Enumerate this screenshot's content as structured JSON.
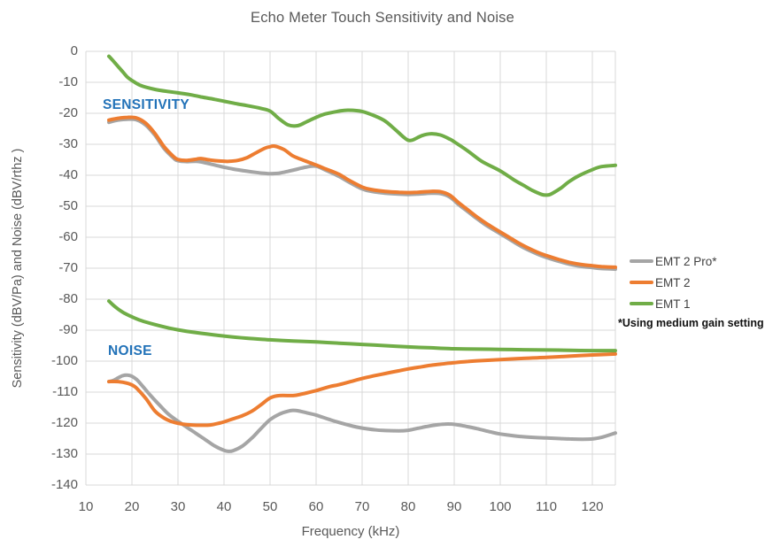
{
  "title": "Echo Meter Touch Sensitivity and Noise",
  "annotations": {
    "sensitivity": "SENSITIVITY",
    "noise": "NOISE",
    "footnote": "*Using medium gain setting"
  },
  "legend": [
    {
      "label": "EMT 2 Pro*",
      "color": "#A5A5A5"
    },
    {
      "label": "EMT 2",
      "color": "#ED7D31"
    },
    {
      "label": "EMT 1",
      "color": "#70AD47"
    }
  ],
  "colors": {
    "grid": "#D9D9D9",
    "axis_text": "#595959",
    "annotation_blue": "#2272B8",
    "background": "#FFFFFF"
  },
  "chart_data": {
    "type": "line",
    "title": "Echo Meter Touch Sensitivity and Noise",
    "xlabel": "Frequency (kHz)",
    "ylabel": "Sensitivity (dBV/Pa) and Noise (dBV/rthz )",
    "xlim": [
      10,
      125
    ],
    "ylim": [
      -140,
      0
    ],
    "x_ticks": [
      10,
      20,
      30,
      40,
      50,
      60,
      70,
      80,
      90,
      100,
      110,
      120
    ],
    "y_ticks": [
      0,
      -10,
      -20,
      -30,
      -40,
      -50,
      -60,
      -70,
      -80,
      -90,
      -100,
      -110,
      -120,
      -130,
      -140
    ],
    "grid": true,
    "legend_position": "right",
    "line_width": 4,
    "series": [
      {
        "name": "EMT 2 Pro* Sensitivity",
        "legend": "EMT 2 Pro*",
        "color": "#A5A5A5",
        "points": [
          [
            15,
            -22.9
          ],
          [
            17,
            -22.2
          ],
          [
            19,
            -21.9
          ],
          [
            21,
            -22.1
          ],
          [
            23,
            -23.8
          ],
          [
            25,
            -27.1
          ],
          [
            27,
            -31.4
          ],
          [
            29,
            -34.4
          ],
          [
            30,
            -35.3
          ],
          [
            32,
            -35.6
          ],
          [
            34,
            -35.5
          ],
          [
            36,
            -36.0
          ],
          [
            38,
            -36.7
          ],
          [
            40,
            -37.4
          ],
          [
            42,
            -38.0
          ],
          [
            45,
            -38.7
          ],
          [
            47,
            -39.1
          ],
          [
            49,
            -39.4
          ],
          [
            50,
            -39.5
          ],
          [
            52,
            -39.3
          ],
          [
            54,
            -38.7
          ],
          [
            56,
            -38.0
          ],
          [
            58,
            -37.3
          ],
          [
            60,
            -37.1
          ],
          [
            62,
            -38.3
          ],
          [
            65,
            -40.4
          ],
          [
            67,
            -42.1
          ],
          [
            70,
            -44.4
          ],
          [
            72,
            -45.2
          ],
          [
            75,
            -45.8
          ],
          [
            78,
            -46.1
          ],
          [
            80,
            -46.2
          ],
          [
            82,
            -46.1
          ],
          [
            85,
            -45.8
          ],
          [
            87,
            -45.9
          ],
          [
            89,
            -47.0
          ],
          [
            91,
            -49.5
          ],
          [
            93,
            -51.8
          ],
          [
            95,
            -54.1
          ],
          [
            97,
            -56.2
          ],
          [
            100,
            -58.9
          ],
          [
            103,
            -61.6
          ],
          [
            105,
            -63.3
          ],
          [
            108,
            -65.4
          ],
          [
            110,
            -66.5
          ],
          [
            113,
            -67.9
          ],
          [
            115,
            -68.7
          ],
          [
            118,
            -69.5
          ],
          [
            120,
            -69.8
          ],
          [
            122,
            -70.1
          ],
          [
            125,
            -70.3
          ]
        ]
      },
      {
        "name": "EMT 2 Pro* Noise",
        "legend": "EMT 2 Pro*",
        "color": "#A5A5A5",
        "points": [
          [
            15,
            -106.6
          ],
          [
            16,
            -106.2
          ],
          [
            17,
            -105.4
          ],
          [
            18,
            -104.7
          ],
          [
            19,
            -104.5
          ],
          [
            20,
            -104.9
          ],
          [
            21,
            -105.9
          ],
          [
            22,
            -107.5
          ],
          [
            24,
            -111.0
          ],
          [
            26,
            -114.2
          ],
          [
            28,
            -117.2
          ],
          [
            30,
            -119.4
          ],
          [
            32,
            -121.4
          ],
          [
            34,
            -123.4
          ],
          [
            36,
            -125.4
          ],
          [
            38,
            -127.4
          ],
          [
            40,
            -128.8
          ],
          [
            41,
            -129.1
          ],
          [
            42,
            -128.9
          ],
          [
            44,
            -127.4
          ],
          [
            46,
            -124.9
          ],
          [
            48,
            -121.8
          ],
          [
            50,
            -118.9
          ],
          [
            52,
            -117.1
          ],
          [
            54,
            -116.1
          ],
          [
            55,
            -115.9
          ],
          [
            56,
            -116.0
          ],
          [
            58,
            -116.7
          ],
          [
            60,
            -117.4
          ],
          [
            63,
            -118.9
          ],
          [
            65,
            -119.8
          ],
          [
            68,
            -121.0
          ],
          [
            70,
            -121.6
          ],
          [
            73,
            -122.2
          ],
          [
            75,
            -122.4
          ],
          [
            78,
            -122.5
          ],
          [
            80,
            -122.3
          ],
          [
            82,
            -121.7
          ],
          [
            84,
            -121.1
          ],
          [
            86,
            -120.6
          ],
          [
            88,
            -120.3
          ],
          [
            90,
            -120.4
          ],
          [
            92,
            -120.9
          ],
          [
            95,
            -121.8
          ],
          [
            98,
            -122.9
          ],
          [
            100,
            -123.5
          ],
          [
            103,
            -124.1
          ],
          [
            105,
            -124.4
          ],
          [
            108,
            -124.7
          ],
          [
            110,
            -124.8
          ],
          [
            113,
            -125.0
          ],
          [
            115,
            -125.1
          ],
          [
            118,
            -125.2
          ],
          [
            120,
            -125.1
          ],
          [
            122,
            -124.6
          ],
          [
            125,
            -123.2
          ]
        ]
      },
      {
        "name": "EMT 2 Sensitivity",
        "legend": "EMT 2",
        "color": "#ED7D31",
        "points": [
          [
            15,
            -22.2
          ],
          [
            17,
            -21.6
          ],
          [
            19,
            -21.3
          ],
          [
            21,
            -21.5
          ],
          [
            23,
            -23.2
          ],
          [
            25,
            -26.5
          ],
          [
            27,
            -30.8
          ],
          [
            29,
            -33.9
          ],
          [
            30,
            -34.9
          ],
          [
            32,
            -35.2
          ],
          [
            34,
            -34.8
          ],
          [
            35,
            -34.6
          ],
          [
            37,
            -35.1
          ],
          [
            39,
            -35.4
          ],
          [
            41,
            -35.5
          ],
          [
            43,
            -35.2
          ],
          [
            45,
            -34.3
          ],
          [
            47,
            -32.7
          ],
          [
            49,
            -31.2
          ],
          [
            50,
            -30.8
          ],
          [
            51,
            -30.6
          ],
          [
            53,
            -31.7
          ],
          [
            55,
            -33.8
          ],
          [
            57,
            -35.0
          ],
          [
            60,
            -36.7
          ],
          [
            62,
            -37.9
          ],
          [
            65,
            -39.7
          ],
          [
            67,
            -41.5
          ],
          [
            70,
            -43.8
          ],
          [
            72,
            -44.6
          ],
          [
            75,
            -45.2
          ],
          [
            78,
            -45.5
          ],
          [
            80,
            -45.6
          ],
          [
            82,
            -45.5
          ],
          [
            85,
            -45.2
          ],
          [
            87,
            -45.3
          ],
          [
            89,
            -46.4
          ],
          [
            91,
            -48.9
          ],
          [
            93,
            -51.2
          ],
          [
            95,
            -53.5
          ],
          [
            97,
            -55.6
          ],
          [
            100,
            -58.3
          ],
          [
            103,
            -61.0
          ],
          [
            105,
            -62.7
          ],
          [
            108,
            -64.8
          ],
          [
            110,
            -65.9
          ],
          [
            113,
            -67.3
          ],
          [
            115,
            -68.1
          ],
          [
            118,
            -68.9
          ],
          [
            120,
            -69.2
          ],
          [
            122,
            -69.5
          ],
          [
            125,
            -69.7
          ]
        ]
      },
      {
        "name": "EMT 2 Noise",
        "legend": "EMT 2",
        "color": "#ED7D31",
        "points": [
          [
            15,
            -106.6
          ],
          [
            17,
            -106.6
          ],
          [
            19,
            -107.1
          ],
          [
            20,
            -107.7
          ],
          [
            21,
            -108.7
          ],
          [
            23,
            -112.0
          ],
          [
            25,
            -116.1
          ],
          [
            27,
            -118.4
          ],
          [
            29,
            -119.7
          ],
          [
            31,
            -120.3
          ],
          [
            33,
            -120.6
          ],
          [
            35,
            -120.7
          ],
          [
            37,
            -120.6
          ],
          [
            39,
            -120.0
          ],
          [
            40,
            -119.6
          ],
          [
            42,
            -118.6
          ],
          [
            44,
            -117.6
          ],
          [
            46,
            -116.2
          ],
          [
            48,
            -114.1
          ],
          [
            50,
            -111.9
          ],
          [
            52,
            -111.1
          ],
          [
            55,
            -111.1
          ],
          [
            57,
            -110.6
          ],
          [
            60,
            -109.5
          ],
          [
            63,
            -108.2
          ],
          [
            65,
            -107.6
          ],
          [
            68,
            -106.4
          ],
          [
            70,
            -105.6
          ],
          [
            73,
            -104.6
          ],
          [
            75,
            -104.0
          ],
          [
            78,
            -103.1
          ],
          [
            80,
            -102.5
          ],
          [
            83,
            -101.8
          ],
          [
            85,
            -101.3
          ],
          [
            88,
            -100.8
          ],
          [
            90,
            -100.5
          ],
          [
            93,
            -100.1
          ],
          [
            95,
            -99.9
          ],
          [
            100,
            -99.5
          ],
          [
            105,
            -99.1
          ],
          [
            110,
            -98.8
          ],
          [
            115,
            -98.4
          ],
          [
            120,
            -98.0
          ],
          [
            125,
            -97.7
          ]
        ]
      },
      {
        "name": "EMT 1 Sensitivity",
        "legend": "EMT 1",
        "color": "#70AD47",
        "points": [
          [
            15,
            -1.6
          ],
          [
            16,
            -3.2
          ],
          [
            17,
            -4.9
          ],
          [
            18,
            -6.6
          ],
          [
            19,
            -8.3
          ],
          [
            20,
            -9.4
          ],
          [
            22,
            -11.1
          ],
          [
            25,
            -12.3
          ],
          [
            28,
            -13.0
          ],
          [
            30,
            -13.4
          ],
          [
            33,
            -14.1
          ],
          [
            35,
            -14.7
          ],
          [
            38,
            -15.5
          ],
          [
            40,
            -16.1
          ],
          [
            43,
            -17.0
          ],
          [
            45,
            -17.5
          ],
          [
            48,
            -18.4
          ],
          [
            50,
            -19.3
          ],
          [
            52,
            -21.8
          ],
          [
            54,
            -23.8
          ],
          [
            56,
            -24.0
          ],
          [
            58,
            -22.7
          ],
          [
            60,
            -21.3
          ],
          [
            62,
            -20.2
          ],
          [
            65,
            -19.3
          ],
          [
            67,
            -19.0
          ],
          [
            70,
            -19.4
          ],
          [
            73,
            -21.0
          ],
          [
            75,
            -22.5
          ],
          [
            77,
            -25.0
          ],
          [
            79,
            -27.7
          ],
          [
            80,
            -28.7
          ],
          [
            81,
            -28.6
          ],
          [
            83,
            -27.2
          ],
          [
            85,
            -26.6
          ],
          [
            87,
            -27.0
          ],
          [
            89,
            -28.3
          ],
          [
            90,
            -29.2
          ],
          [
            93,
            -32.2
          ],
          [
            96,
            -35.5
          ],
          [
            100,
            -38.6
          ],
          [
            103,
            -41.5
          ],
          [
            105,
            -43.2
          ],
          [
            107,
            -44.9
          ],
          [
            109,
            -46.2
          ],
          [
            110,
            -46.4
          ],
          [
            111,
            -46.1
          ],
          [
            113,
            -44.3
          ],
          [
            115,
            -42.0
          ],
          [
            117,
            -40.2
          ],
          [
            120,
            -38.2
          ],
          [
            122,
            -37.2
          ],
          [
            125,
            -36.8
          ]
        ]
      },
      {
        "name": "EMT 1 Noise",
        "legend": "EMT 1",
        "color": "#70AD47",
        "points": [
          [
            15,
            -80.6
          ],
          [
            16,
            -82.0
          ],
          [
            17,
            -83.2
          ],
          [
            18,
            -84.2
          ],
          [
            19,
            -85.0
          ],
          [
            20,
            -85.7
          ],
          [
            22,
            -86.9
          ],
          [
            25,
            -88.2
          ],
          [
            28,
            -89.3
          ],
          [
            30,
            -89.9
          ],
          [
            33,
            -90.6
          ],
          [
            35,
            -91.0
          ],
          [
            40,
            -91.9
          ],
          [
            45,
            -92.6
          ],
          [
            50,
            -93.1
          ],
          [
            55,
            -93.5
          ],
          [
            60,
            -93.8
          ],
          [
            65,
            -94.2
          ],
          [
            70,
            -94.6
          ],
          [
            75,
            -95.0
          ],
          [
            80,
            -95.4
          ],
          [
            85,
            -95.7
          ],
          [
            90,
            -96.0
          ],
          [
            95,
            -96.1
          ],
          [
            100,
            -96.2
          ],
          [
            105,
            -96.3
          ],
          [
            110,
            -96.4
          ],
          [
            115,
            -96.5
          ],
          [
            120,
            -96.6
          ],
          [
            125,
            -96.6
          ]
        ]
      }
    ]
  }
}
